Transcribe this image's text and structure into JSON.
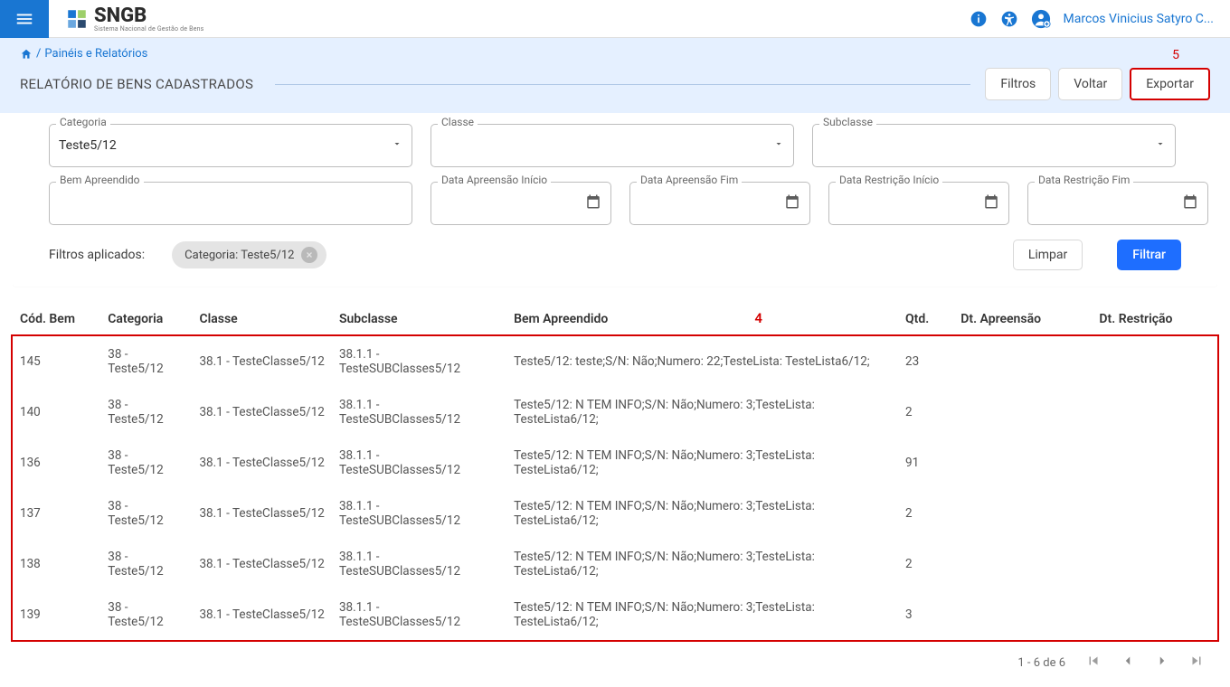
{
  "colors": {
    "primary": "#1976d2",
    "accent": "#1e6eff",
    "danger": "#d40000",
    "headerBg": "#e5f0ff",
    "text": "#555555"
  },
  "topbar": {
    "logo_main": "SNGB",
    "logo_sub": "Sistema Nacional de Gestão de Bens",
    "user_name": "Marcos Vinicius Satyro C..."
  },
  "breadcrumb": {
    "separator": "/",
    "item1": "Painéis e Relatórios"
  },
  "page": {
    "title": "RELATÓRIO DE BENS CADASTRADOS",
    "actions": {
      "filtros": "Filtros",
      "voltar": "Voltar",
      "exportar": "Exportar"
    }
  },
  "annotations": {
    "a4": "4",
    "a5": "5"
  },
  "filters": {
    "categoria": {
      "label": "Categoria",
      "value": "Teste5/12"
    },
    "classe": {
      "label": "Classe",
      "value": ""
    },
    "subclasse": {
      "label": "Subclasse",
      "value": ""
    },
    "bem_apreendido": {
      "label": "Bem Apreendido",
      "value": ""
    },
    "data_apreensao_inicio": {
      "label": "Data Apreensão Início",
      "value": ""
    },
    "data_apreensao_fim": {
      "label": "Data Apreensão Fim",
      "value": ""
    },
    "data_restricao_inicio": {
      "label": "Data Restrição Início",
      "value": ""
    },
    "data_restricao_fim": {
      "label": "Data Restrição Fim",
      "value": ""
    },
    "applied_label": "Filtros aplicados:",
    "chip_text": "Categoria: Teste5/12",
    "limpar": "Limpar",
    "filtrar": "Filtrar"
  },
  "table": {
    "headers": {
      "cod": "Cód. Bem",
      "categoria": "Categoria",
      "classe": "Classe",
      "subclasse": "Subclasse",
      "bem": "Bem Apreendido",
      "qtd": "Qtd.",
      "dt_apreensao": "Dt. Apreensão",
      "dt_restricao": "Dt. Restrição"
    },
    "rows": [
      {
        "cod": "145",
        "categoria": "38 - Teste5/12",
        "classe": "38.1 - TesteClasse5/12",
        "subclasse": "38.1.1 - TesteSUBClasses5/12",
        "bem": "Teste5/12: teste;S/N: Não;Numero: 22;TesteLista: TesteLista6/12;",
        "qtd": "23",
        "dt_apreensao": "",
        "dt_restricao": ""
      },
      {
        "cod": "140",
        "categoria": "38 - Teste5/12",
        "classe": "38.1 - TesteClasse5/12",
        "subclasse": "38.1.1 - TesteSUBClasses5/12",
        "bem": "Teste5/12: N TEM INFO;S/N: Não;Numero: 3;TesteLista: TesteLista6/12;",
        "qtd": "2",
        "dt_apreensao": "",
        "dt_restricao": ""
      },
      {
        "cod": "136",
        "categoria": "38 - Teste5/12",
        "classe": "38.1 - TesteClasse5/12",
        "subclasse": "38.1.1 - TesteSUBClasses5/12",
        "bem": "Teste5/12: N TEM INFO;S/N: Não;Numero: 3;TesteLista: TesteLista6/12;",
        "qtd": "91",
        "dt_apreensao": "",
        "dt_restricao": ""
      },
      {
        "cod": "137",
        "categoria": "38 - Teste5/12",
        "classe": "38.1 - TesteClasse5/12",
        "subclasse": "38.1.1 - TesteSUBClasses5/12",
        "bem": "Teste5/12: N TEM INFO;S/N: Não;Numero: 3;TesteLista: TesteLista6/12;",
        "qtd": "2",
        "dt_apreensao": "",
        "dt_restricao": ""
      },
      {
        "cod": "138",
        "categoria": "38 - Teste5/12",
        "classe": "38.1 - TesteClasse5/12",
        "subclasse": "38.1.1 - TesteSUBClasses5/12",
        "bem": "Teste5/12: N TEM INFO;S/N: Não;Numero: 3;TesteLista: TesteLista6/12;",
        "qtd": "2",
        "dt_apreensao": "",
        "dt_restricao": ""
      },
      {
        "cod": "139",
        "categoria": "38 - Teste5/12",
        "classe": "38.1 - TesteClasse5/12",
        "subclasse": "38.1.1 - TesteSUBClasses5/12",
        "bem": "Teste5/12: N TEM INFO;S/N: Não;Numero: 3;TesteLista: TesteLista6/12;",
        "qtd": "3",
        "dt_apreensao": "",
        "dt_restricao": ""
      }
    ]
  },
  "pager": {
    "summary": "1 - 6 de 6"
  }
}
